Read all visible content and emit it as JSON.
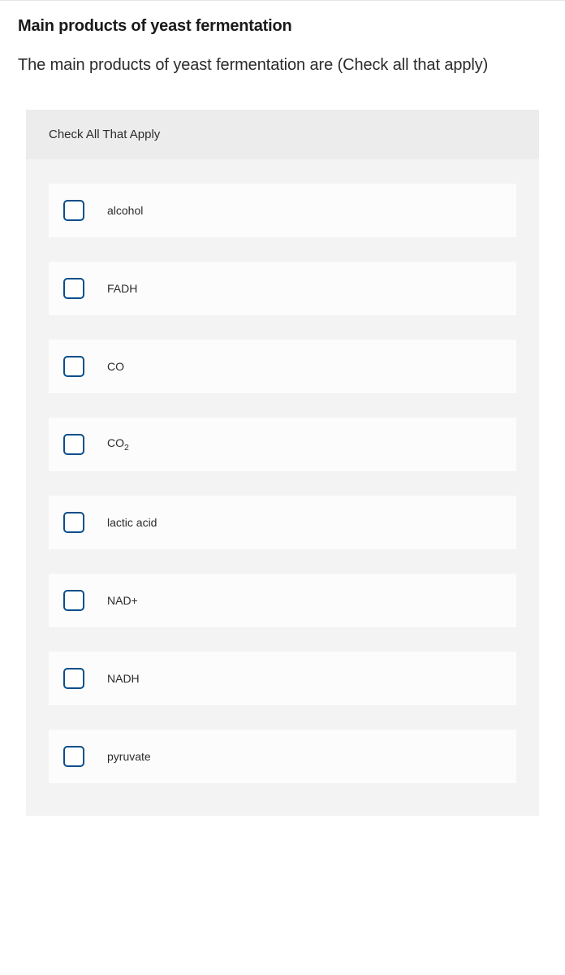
{
  "title": "Main products of yeast fermentation",
  "question": "The main products of yeast fermentation are (Check all that apply)",
  "panel_header": "Check All That Apply",
  "options": [
    {
      "label": "alcohol",
      "has_sub": false
    },
    {
      "label": "FADH",
      "has_sub": false
    },
    {
      "label": "CO",
      "has_sub": false
    },
    {
      "label_pre": "CO",
      "sub": "2",
      "has_sub": true
    },
    {
      "label": "lactic acid",
      "has_sub": false
    },
    {
      "label": "NAD+",
      "has_sub": false
    },
    {
      "label": "NADH",
      "has_sub": false
    },
    {
      "label": "pyruvate",
      "has_sub": false
    }
  ],
  "colors": {
    "checkbox_border": "#0a4f8a",
    "panel_bg": "#f3f3f3",
    "panel_header_bg": "#ececec",
    "option_bg": "#fcfcfc",
    "text": "#1a1a1a"
  }
}
